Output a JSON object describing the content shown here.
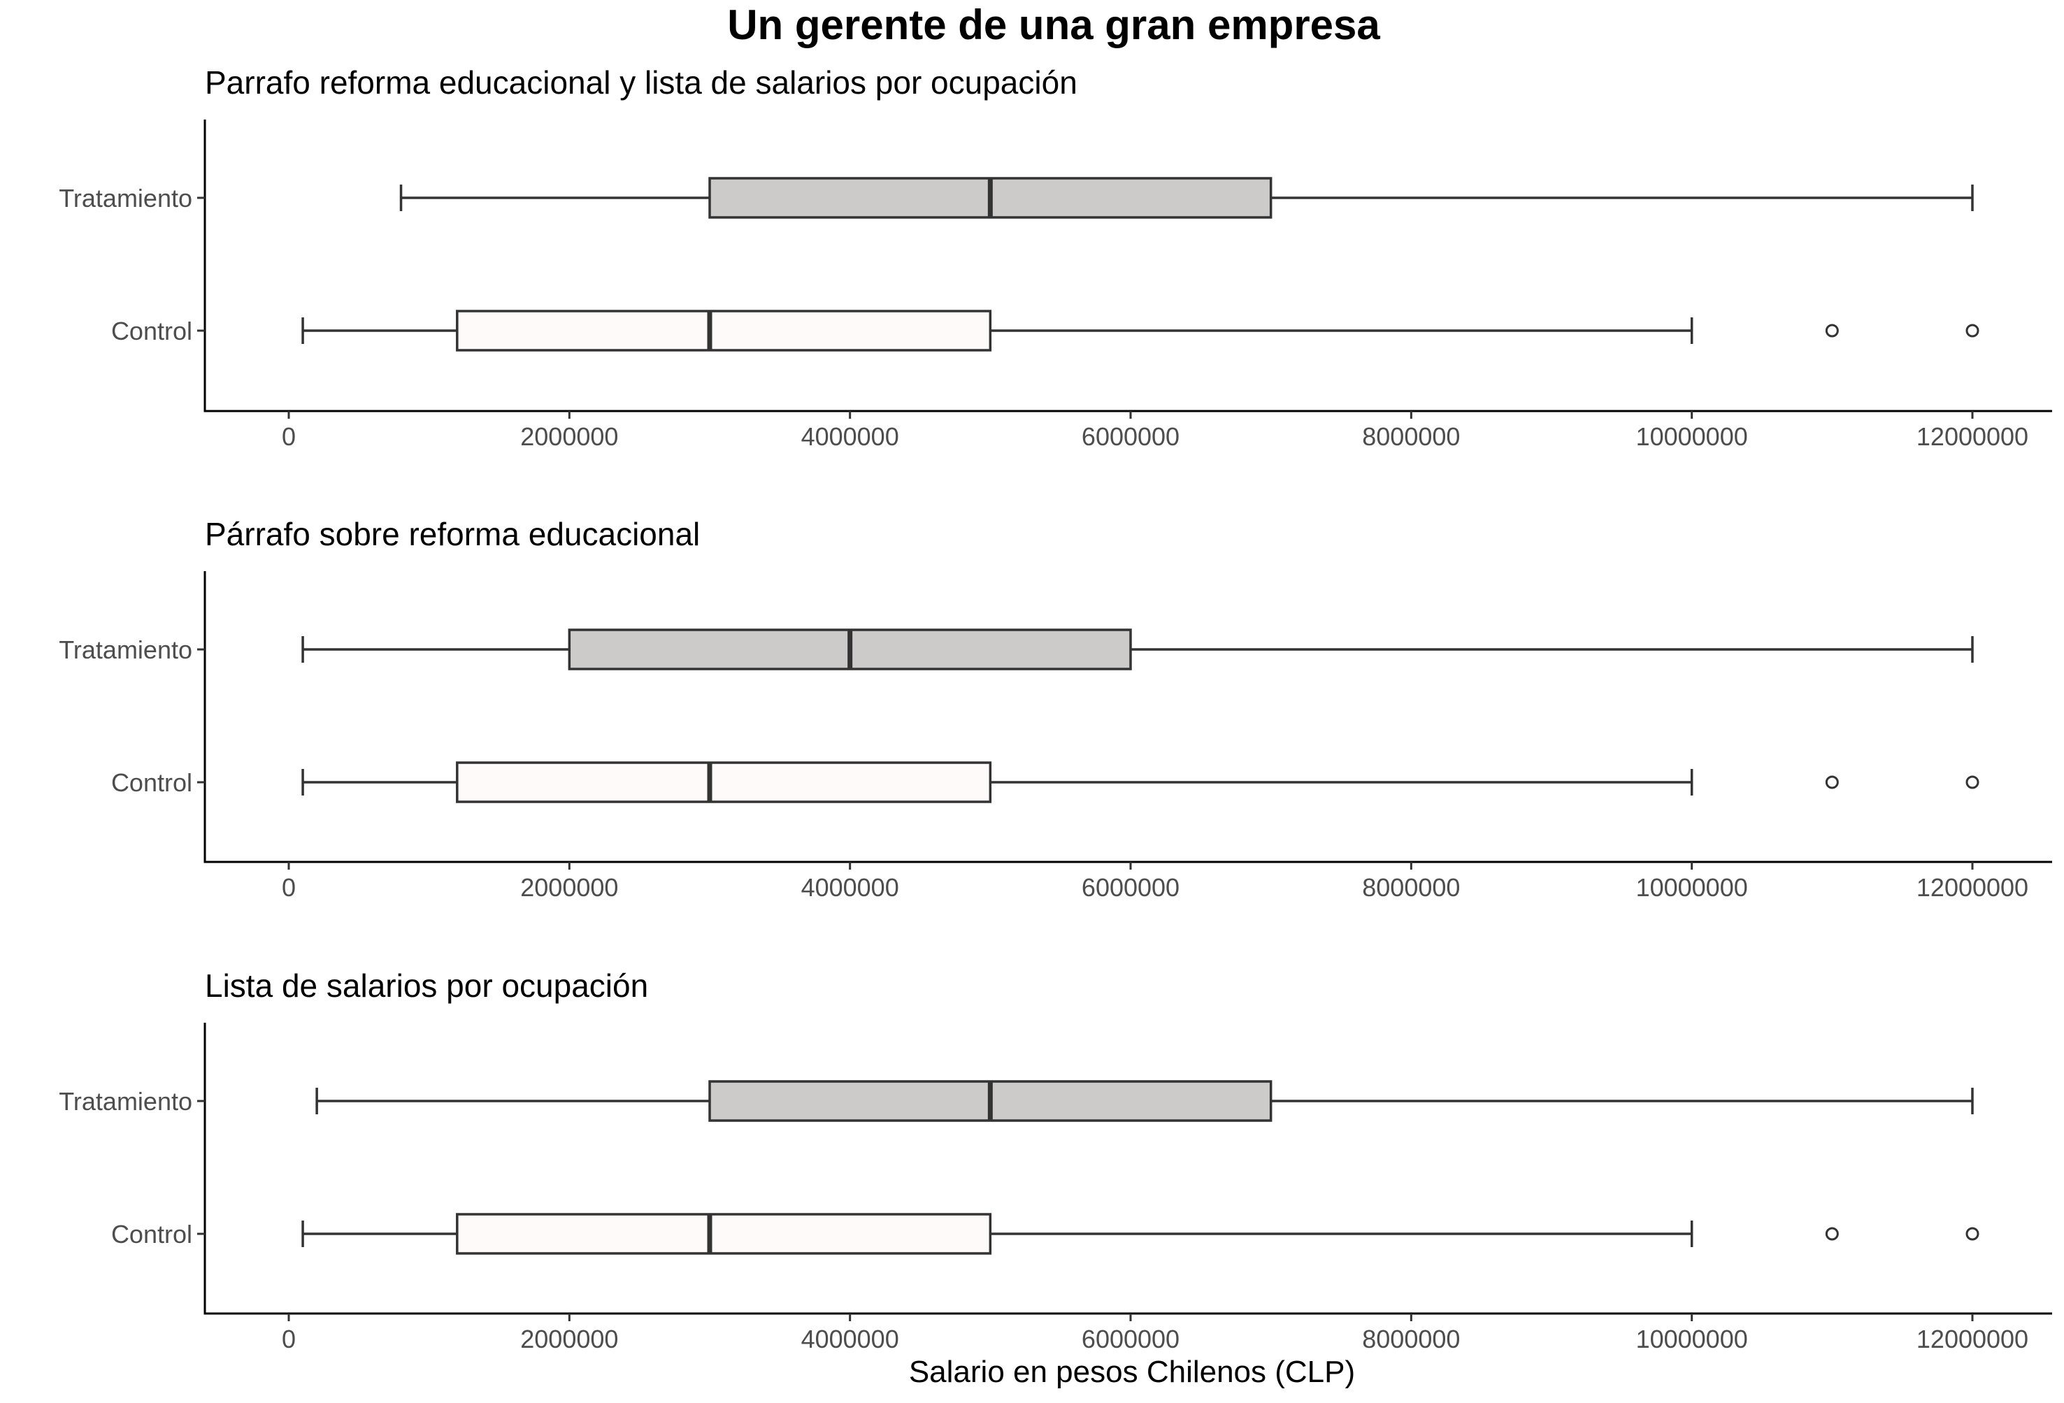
{
  "colors": {
    "treatment_fill": "#cdcaca",
    "control_fill": "#fffafa",
    "line": "#333333",
    "axis": "#000000"
  },
  "chart_data": {
    "type": "boxplot",
    "orientation": "horizontal",
    "title": "Un gerente de una gran empresa",
    "xlabel": "Salario en pesos Chilenos (CLP)",
    "xlim": [
      -600000,
      12600000
    ],
    "x_ticks": [
      0,
      2000000,
      4000000,
      6000000,
      8000000,
      10000000,
      12000000
    ],
    "x_tick_labels": [
      "0",
      "2000000",
      "4000000",
      "6000000",
      "8000000",
      "10000000",
      "12000000"
    ],
    "categories": [
      "Tratamiento",
      "Control"
    ],
    "grid": false,
    "panels": [
      {
        "subtitle": "Parrafo reforma educacional y lista de salarios por ocupación",
        "boxes": [
          {
            "group": "Tratamiento",
            "fill": "treatment_fill",
            "whisker_low": 800000,
            "q1": 3000000,
            "median": 5000000,
            "q3": 7000000,
            "whisker_high": 12000000,
            "outliers": []
          },
          {
            "group": "Control",
            "fill": "control_fill",
            "whisker_low": 100000,
            "q1": 1200000,
            "median": 3000000,
            "q3": 5000000,
            "whisker_high": 10000000,
            "outliers": [
              11000000,
              12000000
            ]
          }
        ]
      },
      {
        "subtitle": "Párrafo sobre reforma educacional",
        "boxes": [
          {
            "group": "Tratamiento",
            "fill": "treatment_fill",
            "whisker_low": 100000,
            "q1": 2000000,
            "median": 4000000,
            "q3": 6000000,
            "whisker_high": 12000000,
            "outliers": []
          },
          {
            "group": "Control",
            "fill": "control_fill",
            "whisker_low": 100000,
            "q1": 1200000,
            "median": 3000000,
            "q3": 5000000,
            "whisker_high": 10000000,
            "outliers": [
              11000000,
              12000000
            ]
          }
        ]
      },
      {
        "subtitle": "Lista de salarios por ocupación",
        "boxes": [
          {
            "group": "Tratamiento",
            "fill": "treatment_fill",
            "whisker_low": 200000,
            "q1": 3000000,
            "median": 5000000,
            "q3": 7000000,
            "whisker_high": 12000000,
            "outliers": []
          },
          {
            "group": "Control",
            "fill": "control_fill",
            "whisker_low": 100000,
            "q1": 1200000,
            "median": 3000000,
            "q3": 5000000,
            "whisker_high": 10000000,
            "outliers": [
              11000000,
              12000000
            ]
          }
        ]
      }
    ]
  }
}
